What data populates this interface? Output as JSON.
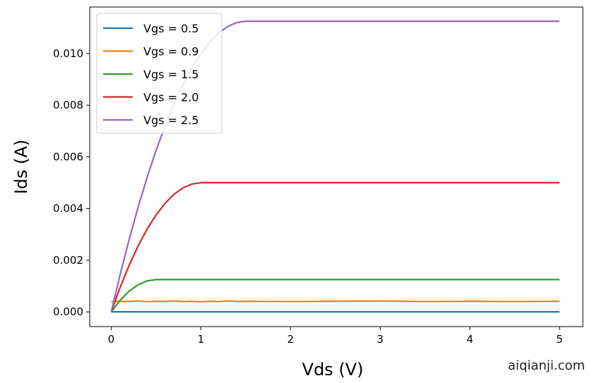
{
  "chart_data": {
    "type": "line",
    "title": "",
    "xlabel": "Vds (V)",
    "ylabel": "Ids (A)",
    "xlim": [
      -0.24,
      5.26
    ],
    "ylim": [
      -0.00057,
      0.0118
    ],
    "xticks": [
      0,
      1,
      2,
      3,
      4,
      5
    ],
    "xtick_labels": [
      "0",
      "1",
      "2",
      "3",
      "4",
      "5"
    ],
    "yticks": [
      0,
      0.002,
      0.004,
      0.006,
      0.008,
      0.01
    ],
    "ytick_labels": [
      "0.000",
      "0.002",
      "0.004",
      "0.006",
      "0.008",
      "0.010"
    ],
    "grid": false,
    "legend_position": "top-left",
    "x": [
      0,
      0.1,
      0.2,
      0.3,
      0.4,
      0.5,
      0.6,
      0.7,
      0.8,
      0.9,
      1.0,
      1.1,
      1.2,
      1.3,
      1.4,
      1.5,
      2.0,
      2.5,
      3.0,
      3.5,
      4.0,
      4.5,
      5.0
    ],
    "series": [
      {
        "name": "Vgs = 0.5",
        "color": "#1f77b4",
        "values": [
          0,
          0,
          0,
          0,
          0,
          0,
          0,
          0,
          0,
          0,
          0,
          0,
          0,
          0,
          0,
          0,
          0,
          0,
          0,
          0,
          0,
          0,
          0
        ]
      },
      {
        "name": "Vgs = 0.9",
        "color": "#ff7f0e",
        "values": [
          0.00039,
          0.00041,
          0.0004,
          0.00042,
          0.00039,
          0.00041,
          0.0004,
          0.00042,
          0.0004,
          0.00041,
          0.00039,
          0.00041,
          0.0004,
          0.00042,
          0.0004,
          0.00041,
          0.0004,
          0.00041,
          0.00042,
          0.0004,
          0.00041,
          0.0004,
          0.00041
        ]
      },
      {
        "name": "Vgs = 1.5",
        "color": "#2ca02c",
        "values": [
          0,
          0.00045,
          0.0008,
          0.00105,
          0.0012,
          0.00125,
          0.00125,
          0.00125,
          0.00125,
          0.00125,
          0.00125,
          0.00125,
          0.00125,
          0.00125,
          0.00125,
          0.00125,
          0.00125,
          0.00125,
          0.00125,
          0.00125,
          0.00125,
          0.00125,
          0.00125
        ]
      },
      {
        "name": "Vgs = 2.0",
        "color": "#d62728",
        "values": [
          0,
          0.00095,
          0.0018,
          0.00255,
          0.0032,
          0.00375,
          0.0042,
          0.00455,
          0.0048,
          0.00495,
          0.005,
          0.005,
          0.005,
          0.005,
          0.005,
          0.005,
          0.005,
          0.005,
          0.005,
          0.005,
          0.005,
          0.005,
          0.005
        ]
      },
      {
        "name": "Vgs = 2.5",
        "color": "#9467bd",
        "values": [
          0,
          0.00145,
          0.0028,
          0.00405,
          0.0052,
          0.00625,
          0.0072,
          0.00805,
          0.0088,
          0.00945,
          0.01,
          0.01045,
          0.0108,
          0.01105,
          0.0112,
          0.01125,
          0.01125,
          0.01125,
          0.01125,
          0.01125,
          0.01125,
          0.01125,
          0.01125
        ]
      }
    ]
  },
  "watermark": "aiqianji.com"
}
